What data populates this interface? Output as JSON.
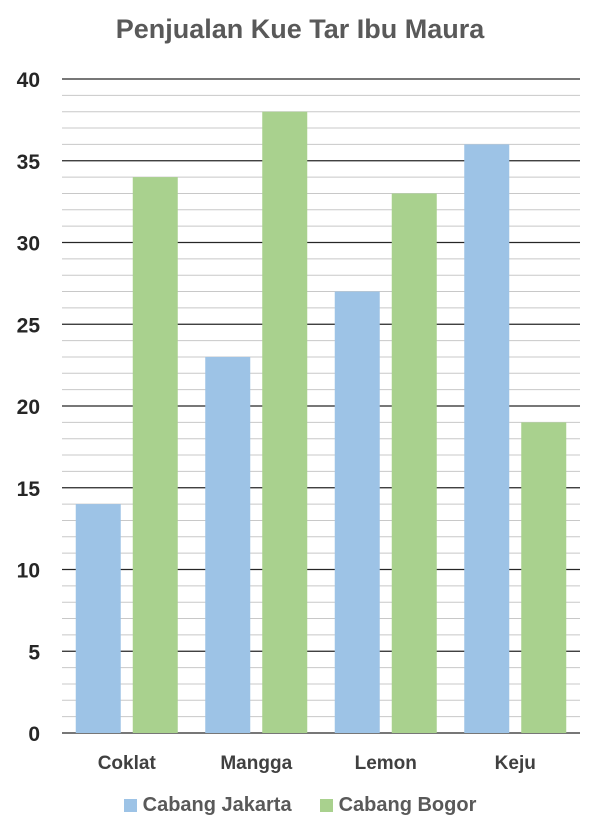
{
  "chart_data": {
    "type": "bar",
    "title": "Penjualan Kue Tar Ibu Maura",
    "xlabel": "",
    "ylabel": "",
    "categories": [
      "Coklat",
      "Mangga",
      "Lemon",
      "Keju"
    ],
    "series": [
      {
        "name": "Cabang Jakarta",
        "color": "#9dc3e6",
        "values": [
          14,
          23,
          27,
          36
        ]
      },
      {
        "name": "Cabang Bogor",
        "color": "#a9d18e",
        "values": [
          34,
          38,
          33,
          19
        ]
      }
    ],
    "ylim": [
      0,
      40
    ],
    "yticks": [
      "0",
      "5",
      "10",
      "15",
      "20",
      "25",
      "30",
      "35",
      "40"
    ],
    "grid": true,
    "legend_position": "bottom"
  }
}
